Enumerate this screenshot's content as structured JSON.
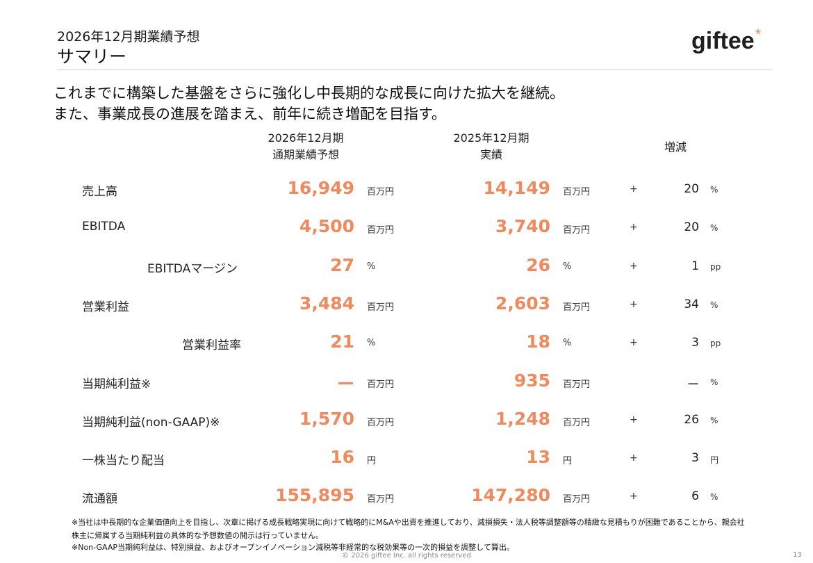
{
  "header": {
    "supertitle": "2026年12月期業績予想",
    "title": "サマリー"
  },
  "logo": {
    "text": "giftee",
    "mark": "*"
  },
  "lead": [
    "これまでに構築した基盤をさらに強化し中長期的な成長に向けた拡大を継続。",
    "また、事業成長の進展を踏まえ、前年に続き増配を目指す。"
  ],
  "columns": {
    "forecast": [
      "2026年12月期",
      "通期業績予想"
    ],
    "actual": [
      "2025年12月期",
      "実績"
    ],
    "change": "増減"
  },
  "rows": [
    {
      "label": "売上高",
      "forecast": "16,949",
      "forecast_unit": "百万円",
      "actual": "14,149",
      "actual_unit": "百万円",
      "sign": "+",
      "change": "20",
      "change_unit": "%"
    },
    {
      "label": "EBITDA",
      "forecast": "4,500",
      "forecast_unit": "百万円",
      "actual": "3,740",
      "actual_unit": "百万円",
      "sign": "+",
      "change": "20",
      "change_unit": "%"
    },
    {
      "label": "EBITDAマージン",
      "forecast": "27",
      "forecast_unit": "%",
      "actual": "26",
      "actual_unit": "%",
      "sign": "+",
      "change": "1",
      "change_unit": "pp"
    },
    {
      "label": "営業利益",
      "forecast": "3,484",
      "forecast_unit": "百万円",
      "actual": "2,603",
      "actual_unit": "百万円",
      "sign": "+",
      "change": "34",
      "change_unit": "%"
    },
    {
      "label": "営業利益率",
      "forecast": "21",
      "forecast_unit": "%",
      "actual": "18",
      "actual_unit": "%",
      "sign": "+",
      "change": "3",
      "change_unit": "pp"
    },
    {
      "label": "当期純利益※",
      "forecast": "ー",
      "forecast_unit": "百万円",
      "actual": "935",
      "actual_unit": "百万円",
      "sign": "",
      "change": "ー",
      "change_unit": "%"
    },
    {
      "label": "当期純利益(non-GAAP)※",
      "forecast": "1,570",
      "forecast_unit": "百万円",
      "actual": "1,248",
      "actual_unit": "百万円",
      "sign": "+",
      "change": "26",
      "change_unit": "%"
    },
    {
      "label": "一株当たり配当",
      "forecast": "16",
      "forecast_unit": "円",
      "actual": "13",
      "actual_unit": "円",
      "sign": "+",
      "change": "3",
      "change_unit": "円"
    },
    {
      "label": "流通額",
      "forecast": "155,895",
      "forecast_unit": "百万円",
      "actual": "147,280",
      "actual_unit": "百万円",
      "sign": "+",
      "change": "6",
      "change_unit": "%"
    }
  ],
  "notes": [
    "※当社は中長期的な企業価値向上を目指し、次章に掲げる成長戦略実現に向けて戦略的にM&Aや出資を推進しており、減損損失・法人税等調整額等の精緻な見積もりが困難であることから、親会社",
    "株主に帰属する当期純利益の具体的な予想数値の開示は行っていません。",
    "※Non-GAAP当期純利益は、特別損益、およびオープンイノベーション減税等非経常的な税効果等の一次的損益を調整して算出。"
  ],
  "footer": {
    "copyright": "© 2026 giftee Inc. all rights reserved",
    "page": "13"
  },
  "colors": {
    "accent": "#f08a5d"
  }
}
